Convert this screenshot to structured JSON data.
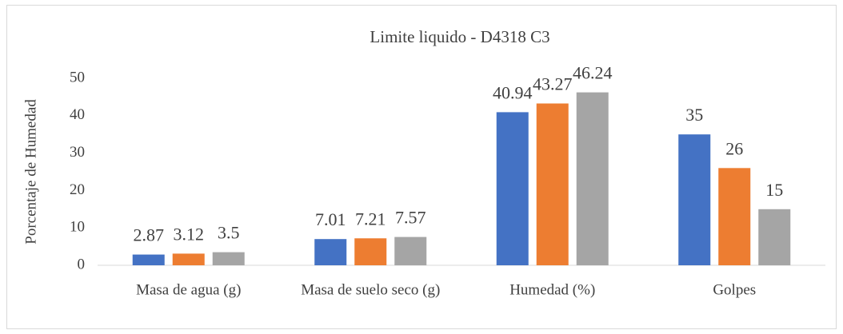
{
  "chart_data": {
    "type": "bar",
    "title": "Limite liquido - D4318 C3",
    "y_label": "Porcentaje de Humedad",
    "categories": [
      "Masa de agua (g)",
      "Masa de suelo seco (g)",
      "Humedad (%)",
      "Golpes"
    ],
    "series": [
      {
        "color": "#4472c4",
        "values": [
          2.87,
          7.01,
          40.94,
          35
        ]
      },
      {
        "color": "#ed7d31",
        "values": [
          3.12,
          7.21,
          43.27,
          26
        ]
      },
      {
        "color": "#a5a5a5",
        "values": [
          3.5,
          7.57,
          46.24,
          15
        ]
      }
    ],
    "ylim": [
      0,
      50
    ],
    "yticks": [
      0,
      10,
      20,
      30,
      40,
      50
    ],
    "grid": false
  }
}
